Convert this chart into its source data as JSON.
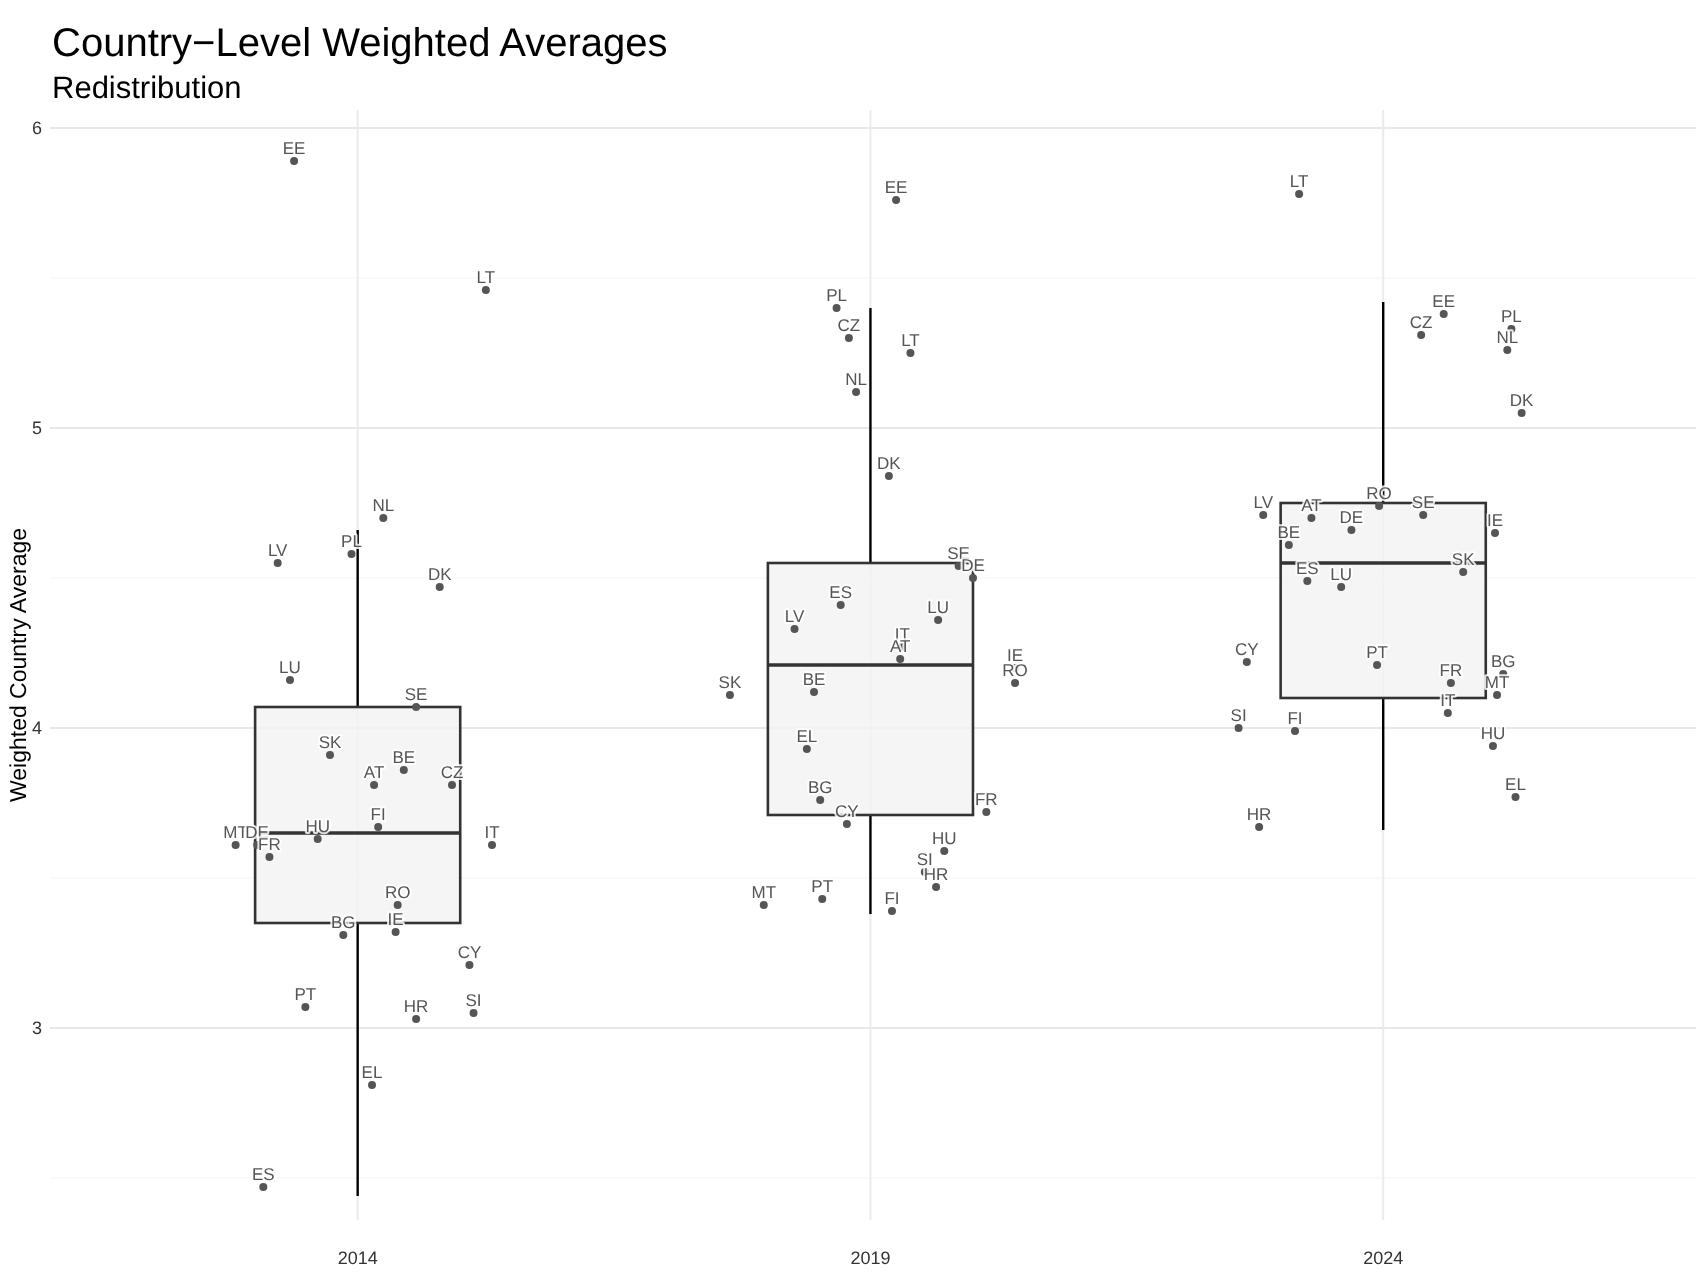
{
  "chart_data": {
    "type": "box",
    "title": "Country−Level Weighted Averages",
    "subtitle": "Redistribution",
    "ylabel": "Weighted Country Average",
    "x": [
      2014,
      2019,
      2024
    ],
    "xlim": [
      2011,
      2027.05
    ],
    "xticks": [
      2014,
      2019,
      2024
    ],
    "ylim": [
      2.36,
      6.06
    ],
    "yticks": [
      {
        "value": 2.5,
        "label": null
      },
      3,
      {
        "value": 3.5,
        "label": null
      },
      4,
      {
        "value": 4.5,
        "label": null
      },
      5,
      {
        "value": 5.5,
        "label": null
      },
      6
    ],
    "grid": true,
    "color": "#f2f2f2",
    "boxes": [
      {
        "low": 2.44,
        "q1": 3.35,
        "median": 3.65,
        "q3": 4.07,
        "high": 4.66
      },
      {
        "low": 3.38,
        "q1": 3.71,
        "median": 4.21,
        "q3": 4.55,
        "high": 5.4
      },
      {
        "low": 3.66,
        "q1": 4.1,
        "median": 4.55,
        "q3": 4.75,
        "high": 5.42
      }
    ],
    "series": [
      {
        "type": "scatter",
        "marker": "circle",
        "color": "#555555",
        "x": [
          2013.38,
          2015.25,
          2014.25,
          2013.94,
          2013.22,
          2014.8,
          2013.34,
          2014.57,
          2013.73,
          2014.45,
          2014.16,
          2014.92,
          2014.2,
          2013.61,
          2012.81,
          2013.02,
          2013.14,
          2015.31,
          2014.39,
          2013.86,
          2014.37,
          2015.09,
          2013.49,
          2014.57,
          2015.13,
          2014.14,
          2013.08
        ],
        "values": [
          5.89,
          5.46,
          4.7,
          4.58,
          4.55,
          4.47,
          4.16,
          4.07,
          3.91,
          3.86,
          3.81,
          3.81,
          3.67,
          3.63,
          3.61,
          3.61,
          3.57,
          3.61,
          3.41,
          3.31,
          3.32,
          3.21,
          3.07,
          3.03,
          3.05,
          2.81,
          2.47
        ],
        "value_labels": [
          "EE",
          "LT",
          "NL",
          "PL",
          "LV",
          "DK",
          "LU",
          "SE",
          "SK",
          "BE",
          "AT",
          "CZ",
          "FI",
          "HU",
          "MT",
          "DE",
          "FR",
          "IT",
          "RO",
          "BG",
          "IE",
          "CY",
          "PT",
          "HR",
          "SI",
          "EL",
          "ES"
        ]
      },
      {
        "type": "scatter",
        "marker": "circle",
        "color": "#555555",
        "x": [
          2019.25,
          2018.67,
          2018.79,
          2019.39,
          2018.86,
          2019.18,
          2019.86,
          2020.0,
          2018.71,
          2019.66,
          2018.26,
          2019.31,
          2019.29,
          2020.41,
          2020.41,
          2017.63,
          2018.45,
          2018.38,
          2018.51,
          2020.13,
          2018.77,
          2019.72,
          2019.53,
          2019.64,
          2017.96,
          2018.53,
          2019.21
        ],
        "values": [
          5.76,
          5.4,
          5.3,
          5.25,
          5.12,
          4.84,
          4.54,
          4.5,
          4.41,
          4.36,
          4.33,
          4.27,
          4.23,
          4.2,
          4.15,
          4.11,
          4.12,
          3.93,
          3.76,
          3.72,
          3.68,
          3.59,
          3.52,
          3.47,
          3.41,
          3.43,
          3.39
        ],
        "value_labels": [
          "EE",
          "PL",
          "CZ",
          "LT",
          "NL",
          "DK",
          "SE",
          "DE",
          "ES",
          "LU",
          "LV",
          "IT",
          "AT",
          "IE",
          "RO",
          "SK",
          "BE",
          "EL",
          "BG",
          "FR",
          "CY",
          "HU",
          "SI",
          "HR",
          "MT",
          "PT",
          "FI"
        ]
      },
      {
        "type": "scatter",
        "marker": "circle",
        "color": "#555555",
        "x": [
          2023.18,
          2024.59,
          2025.25,
          2024.37,
          2025.21,
          2025.35,
          2023.96,
          2022.83,
          2024.39,
          2023.3,
          2023.69,
          2025.09,
          2023.08,
          2024.78,
          2023.26,
          2023.59,
          2022.67,
          2023.94,
          2025.17,
          2024.66,
          2025.11,
          2024.63,
          2022.59,
          2023.14,
          2025.07,
          2025.29,
          2022.79
        ],
        "values": [
          5.78,
          5.38,
          5.33,
          5.31,
          5.26,
          5.05,
          4.74,
          4.71,
          4.71,
          4.7,
          4.66,
          4.65,
          4.61,
          4.52,
          4.49,
          4.47,
          4.22,
          4.21,
          4.18,
          4.15,
          4.11,
          4.05,
          4.0,
          3.99,
          3.94,
          3.77,
          3.67
        ],
        "value_labels": [
          "LT",
          "EE",
          "PL",
          "CZ",
          "NL",
          "DK",
          "RO",
          "LV",
          "SE",
          "AT",
          "DE",
          "IE",
          "BE",
          "SK",
          "ES",
          "LU",
          "CY",
          "PT",
          "BG",
          "FR",
          "MT",
          "IT",
          "SI",
          "FI",
          "HU",
          "EL",
          "HR"
        ]
      }
    ]
  }
}
